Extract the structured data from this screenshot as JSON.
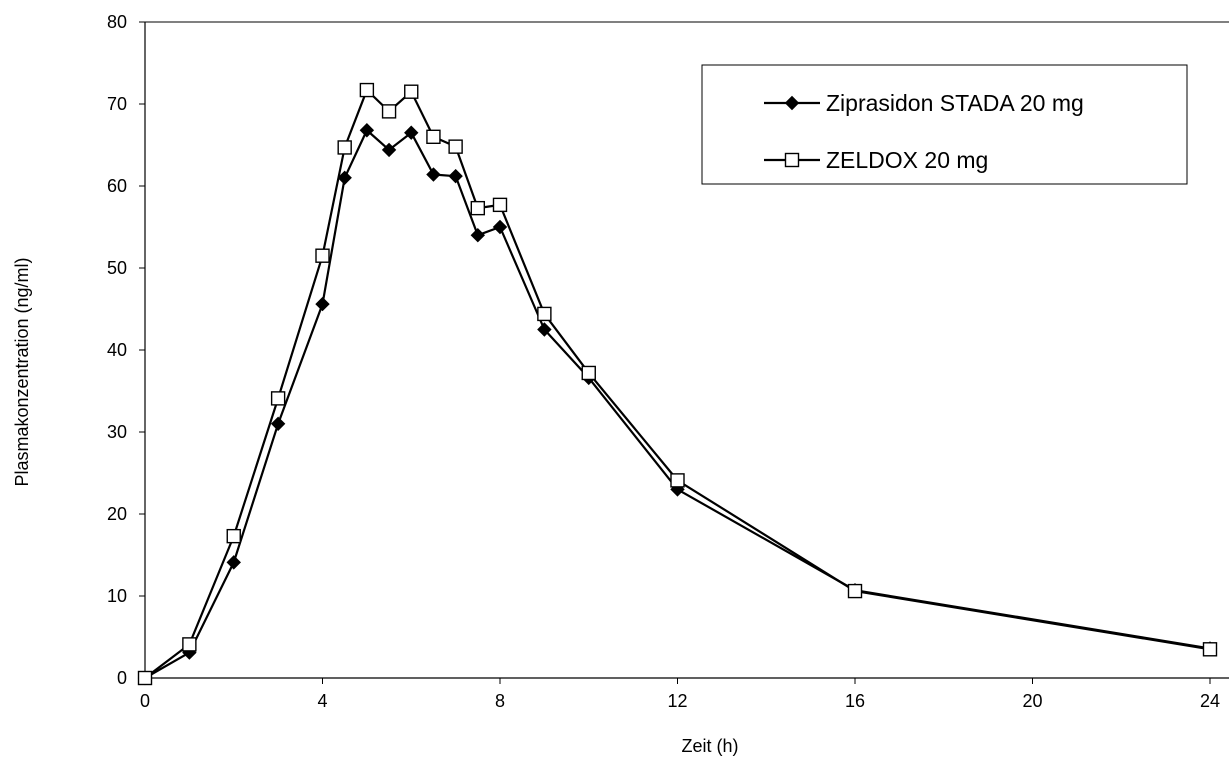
{
  "chart_data": {
    "type": "line",
    "title": "",
    "xlabel": "Zeit (h)",
    "ylabel": "Plasmakonzentration (ng/ml)",
    "xlim": [
      0,
      24
    ],
    "ylim": [
      0,
      80
    ],
    "x_ticks": [
      "0",
      "4",
      "8",
      "12",
      "16",
      "20",
      "24"
    ],
    "y_ticks": [
      "0",
      "10",
      "20",
      "30",
      "40",
      "50",
      "60",
      "70",
      "80"
    ],
    "grid": false,
    "legend_position": "top-right",
    "series": [
      {
        "name": "Ziprasidon STADA 20 mg",
        "marker": "filled-diamond",
        "color": "#000000",
        "x": [
          0,
          1,
          2,
          3,
          4,
          4.5,
          5,
          5.5,
          6,
          6.5,
          7,
          7.5,
          8,
          9,
          10,
          12,
          16,
          24
        ],
        "y": [
          0,
          3.1,
          14.1,
          31.0,
          45.6,
          61.0,
          66.8,
          64.4,
          66.5,
          61.4,
          61.2,
          54.0,
          55.0,
          42.5,
          36.6,
          23.0,
          10.7,
          3.6
        ]
      },
      {
        "name": "ZELDOX 20 mg",
        "marker": "open-square",
        "color": "#000000",
        "x": [
          0,
          1,
          2,
          3,
          4,
          4.5,
          5,
          5.5,
          6,
          6.5,
          7,
          7.5,
          8,
          9,
          10,
          12,
          16,
          24
        ],
        "y": [
          0,
          4.1,
          17.3,
          34.1,
          51.5,
          64.7,
          71.7,
          69.1,
          71.5,
          66.0,
          64.8,
          57.3,
          57.7,
          44.4,
          37.2,
          24.1,
          10.6,
          3.5
        ]
      }
    ]
  }
}
